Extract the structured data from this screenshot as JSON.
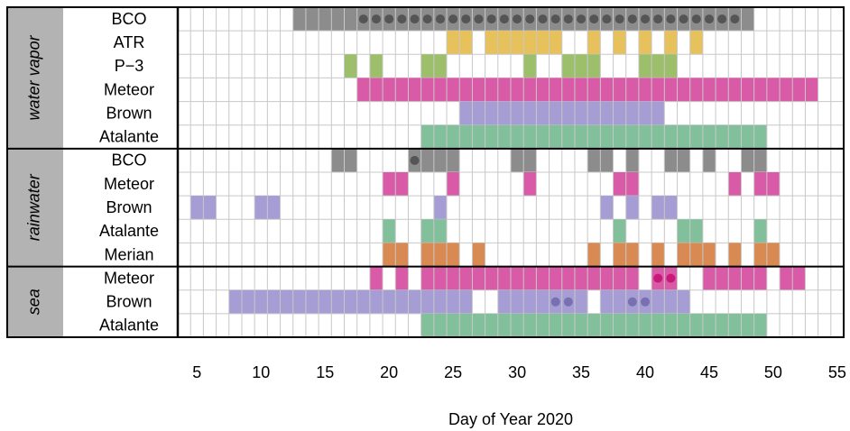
{
  "chart_data": {
    "type": "timeline",
    "xlabel": "Day of Year 2020",
    "xlim": [
      3.5,
      55.5
    ],
    "xticks": [
      5,
      10,
      15,
      20,
      25,
      30,
      35,
      40,
      45,
      50,
      55
    ],
    "groups": [
      {
        "name": "water vapor",
        "rows": [
          {
            "label": "BCO",
            "color": "#8c8c8c",
            "spans": [
              [
                13,
                48
              ]
            ],
            "dots": [
              18,
              19,
              20,
              21,
              22,
              23,
              24,
              25,
              26,
              27,
              28,
              29,
              30,
              31,
              32,
              33,
              34,
              35,
              36,
              37,
              38,
              39,
              40,
              41,
              42,
              43,
              44,
              45,
              46,
              47
            ],
            "dot_color": "#555555"
          },
          {
            "label": "ATR",
            "color": "#e6c15c",
            "spans": [
              [
                25,
                26
              ],
              [
                28,
                33
              ],
              [
                36,
                36
              ],
              [
                38,
                38
              ],
              [
                40,
                40
              ],
              [
                42,
                42
              ],
              [
                44,
                44
              ]
            ]
          },
          {
            "label": "P−3",
            "color": "#9dbf6b",
            "spans": [
              [
                17,
                17
              ],
              [
                19,
                19
              ],
              [
                23,
                24
              ],
              [
                31,
                31
              ],
              [
                34,
                36
              ],
              [
                40,
                42
              ]
            ]
          },
          {
            "label": "Meteor",
            "color": "#d95aa6",
            "spans": [
              [
                18,
                53
              ]
            ]
          },
          {
            "label": "Brown",
            "color": "#a59dd3",
            "spans": [
              [
                26,
                41
              ]
            ]
          },
          {
            "label": "Atalante",
            "color": "#82bf9b",
            "spans": [
              [
                23,
                49
              ]
            ]
          }
        ]
      },
      {
        "name": "rainwater",
        "rows": [
          {
            "label": "BCO",
            "color": "#8c8c8c",
            "spans": [
              [
                16,
                17
              ],
              [
                22,
                25
              ],
              [
                30,
                31
              ],
              [
                36,
                37
              ],
              [
                39,
                39
              ],
              [
                42,
                43
              ],
              [
                45,
                45
              ],
              [
                48,
                49
              ]
            ],
            "dots": [
              22
            ],
            "dot_color": "#555555"
          },
          {
            "label": "Meteor",
            "color": "#d95aa6",
            "spans": [
              [
                20,
                21
              ],
              [
                25,
                25
              ],
              [
                31,
                31
              ],
              [
                38,
                39
              ],
              [
                47,
                47
              ],
              [
                49,
                50
              ]
            ]
          },
          {
            "label": "Brown",
            "color": "#a59dd3",
            "spans": [
              [
                5,
                6
              ],
              [
                10,
                11
              ],
              [
                24,
                24
              ],
              [
                37,
                37
              ],
              [
                39,
                39
              ],
              [
                41,
                42
              ]
            ]
          },
          {
            "label": "Atalante",
            "color": "#82bf9b",
            "spans": [
              [
                20,
                20
              ],
              [
                23,
                24
              ],
              [
                38,
                38
              ],
              [
                43,
                44
              ],
              [
                49,
                49
              ]
            ]
          },
          {
            "label": "Merian",
            "color": "#d98a52",
            "spans": [
              [
                20,
                21
              ],
              [
                23,
                25
              ],
              [
                27,
                27
              ],
              [
                36,
                36
              ],
              [
                38,
                39
              ],
              [
                41,
                41
              ],
              [
                43,
                45
              ],
              [
                47,
                47
              ],
              [
                49,
                50
              ]
            ]
          }
        ]
      },
      {
        "name": "sea",
        "rows": [
          {
            "label": "Meteor",
            "color": "#d95aa6",
            "spans": [
              [
                19,
                19
              ],
              [
                21,
                21
              ],
              [
                23,
                39
              ],
              [
                41,
                42
              ],
              [
                45,
                49
              ],
              [
                51,
                52
              ]
            ],
            "dots": [
              41,
              42
            ],
            "dot_color": "#c8197a"
          },
          {
            "label": "Brown",
            "color": "#a59dd3",
            "spans": [
              [
                8,
                26
              ],
              [
                29,
                35
              ],
              [
                37,
                43
              ]
            ],
            "dots": [
              33,
              34,
              39,
              40
            ],
            "dot_color": "#7870b0"
          },
          {
            "label": "Atalante",
            "color": "#82bf9b",
            "spans": [
              [
                23,
                49
              ]
            ]
          }
        ]
      }
    ]
  }
}
